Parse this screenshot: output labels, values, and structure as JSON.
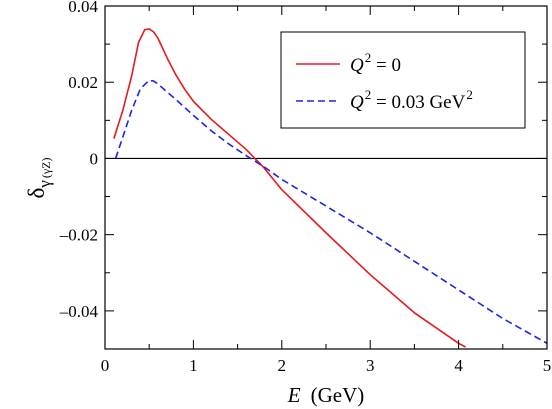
{
  "chart_data": {
    "type": "line",
    "xlabel": {
      "var": "E",
      "unit": "(GeV)"
    },
    "ylabel": {
      "main": "δ",
      "sub1": "γ",
      "sub2": "(γZ)"
    },
    "xlim": [
      0,
      5
    ],
    "ylim": [
      -0.05,
      0.04
    ],
    "x_ticks": [
      0,
      1,
      2,
      3,
      4,
      5
    ],
    "x_tick_labels": [
      "0",
      "1",
      "2",
      "3",
      "4",
      "5"
    ],
    "y_ticks": [
      -0.04,
      -0.02,
      0,
      0.02,
      0.04
    ],
    "y_tick_labels": [
      "–0.04",
      "–0.02",
      "0",
      "0.02",
      "0.04"
    ],
    "zero_line": true,
    "legend_position": "top-right",
    "series": [
      {
        "name": "Q^2 = 0",
        "legend": {
          "var": "Q",
          "sup": "2",
          "rest": " = 0",
          "unit": "",
          "unit_sup": ""
        },
        "color": "#e8191e",
        "dash": "solid",
        "x": [
          0.1,
          0.2,
          0.3,
          0.38,
          0.45,
          0.5,
          0.55,
          0.6,
          0.7,
          0.8,
          0.9,
          1.0,
          1.2,
          1.4,
          1.6,
          1.8,
          2.0,
          2.5,
          3.0,
          3.5,
          4.0,
          4.08
        ],
        "y": [
          0.0052,
          0.0125,
          0.0215,
          0.0305,
          0.0338,
          0.034,
          0.0332,
          0.0315,
          0.0265,
          0.022,
          0.0182,
          0.015,
          0.0103,
          0.0063,
          0.0023,
          -0.0025,
          -0.0082,
          -0.0195,
          -0.0305,
          -0.0405,
          -0.0485,
          -0.0495
        ]
      },
      {
        "name": "Q^2 = 0.03 GeV^2",
        "legend": {
          "var": "Q",
          "sup": "2",
          "rest": " = 0.03 ",
          "unit": "GeV",
          "unit_sup": "2"
        },
        "color": "#1f23e6",
        "dash": "dashed",
        "x": [
          0.12,
          0.2,
          0.3,
          0.4,
          0.5,
          0.55,
          0.6,
          0.7,
          0.8,
          1.0,
          1.2,
          1.4,
          1.6,
          1.8,
          2.0,
          2.5,
          3.0,
          3.5,
          4.0,
          4.5,
          5.0
        ],
        "y": [
          0.0,
          0.0055,
          0.0125,
          0.0183,
          0.0205,
          0.0203,
          0.0195,
          0.0175,
          0.0155,
          0.0113,
          0.0073,
          0.0038,
          0.0007,
          -0.0022,
          -0.0055,
          -0.0125,
          -0.0195,
          -0.027,
          -0.0345,
          -0.042,
          -0.0485
        ]
      }
    ]
  }
}
